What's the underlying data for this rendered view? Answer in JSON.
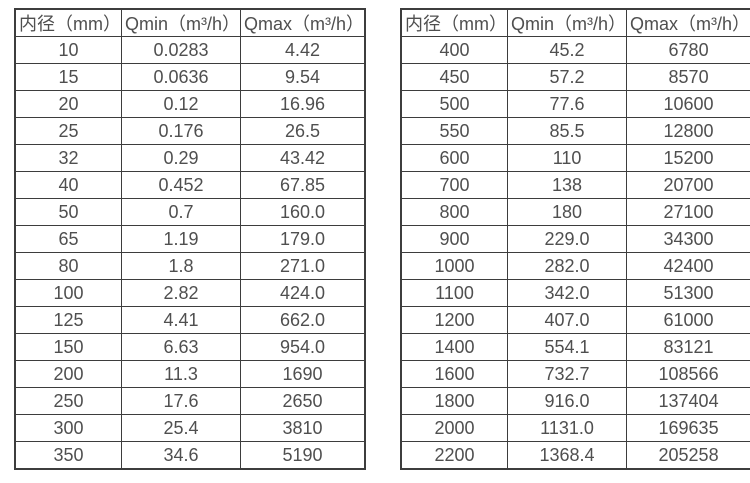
{
  "style": {
    "border_color": "#3d3d3d",
    "text_color": "#4f4f4f",
    "background": "#ffffff"
  },
  "tables": [
    {
      "name": "flow-table-small-diameters",
      "headers": [
        "内径（mm）",
        "Qmin（m³/h）",
        "Qmax（m³/h）"
      ],
      "rows": [
        [
          "10",
          "0.0283",
          "4.42"
        ],
        [
          "15",
          "0.0636",
          "9.54"
        ],
        [
          "20",
          "0.12",
          "16.96"
        ],
        [
          "25",
          "0.176",
          "26.5"
        ],
        [
          "32",
          "0.29",
          "43.42"
        ],
        [
          "40",
          "0.452",
          "67.85"
        ],
        [
          "50",
          "0.7",
          "160.0"
        ],
        [
          "65",
          "1.19",
          "179.0"
        ],
        [
          "80",
          "1.8",
          "271.0"
        ],
        [
          "100",
          "2.82",
          "424.0"
        ],
        [
          "125",
          "4.41",
          "662.0"
        ],
        [
          "150",
          "6.63",
          "954.0"
        ],
        [
          "200",
          "11.3",
          "1690"
        ],
        [
          "250",
          "17.6",
          "2650"
        ],
        [
          "300",
          "25.4",
          "3810"
        ],
        [
          "350",
          "34.6",
          "5190"
        ]
      ]
    },
    {
      "name": "flow-table-large-diameters",
      "headers": [
        "内径（mm）",
        "Qmin（m³/h）",
        "Qmax（m³/h）"
      ],
      "rows": [
        [
          "400",
          "45.2",
          "6780"
        ],
        [
          "450",
          "57.2",
          "8570"
        ],
        [
          "500",
          "77.6",
          "10600"
        ],
        [
          "550",
          "85.5",
          "12800"
        ],
        [
          "600",
          "110",
          "15200"
        ],
        [
          "700",
          "138",
          "20700"
        ],
        [
          "800",
          "180",
          "27100"
        ],
        [
          "900",
          "229.0",
          "34300"
        ],
        [
          "1000",
          "282.0",
          "42400"
        ],
        [
          "1100",
          "342.0",
          "51300"
        ],
        [
          "1200",
          "407.0",
          "61000"
        ],
        [
          "1400",
          "554.1",
          "83121"
        ],
        [
          "1600",
          "732.7",
          "108566"
        ],
        [
          "1800",
          "916.0",
          "137404"
        ],
        [
          "2000",
          "1131.0",
          "169635"
        ],
        [
          "2200",
          "1368.4",
          "205258"
        ]
      ]
    }
  ]
}
